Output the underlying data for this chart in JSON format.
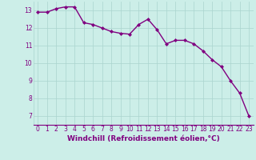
{
  "x": [
    0,
    1,
    2,
    3,
    4,
    5,
    6,
    7,
    8,
    9,
    10,
    11,
    12,
    13,
    14,
    15,
    16,
    17,
    18,
    19,
    20,
    21,
    22,
    23
  ],
  "y": [
    12.9,
    12.9,
    13.1,
    13.2,
    13.2,
    12.3,
    12.2,
    12.0,
    11.8,
    11.7,
    11.65,
    12.2,
    12.5,
    11.9,
    11.1,
    11.3,
    11.3,
    11.1,
    10.7,
    10.2,
    9.8,
    9.0,
    8.3,
    7.0
  ],
  "line_color": "#800080",
  "marker": "D",
  "marker_size": 2.0,
  "bg_color": "#cceee8",
  "grid_color": "#aad4ce",
  "xlabel": "Windchill (Refroidissement éolien,°C)",
  "xlabel_color": "#800080",
  "tick_color": "#800080",
  "xlim": [
    -0.5,
    23.5
  ],
  "ylim": [
    6.5,
    13.5
  ],
  "yticks": [
    7,
    8,
    9,
    10,
    11,
    12,
    13
  ],
  "xticks": [
    0,
    1,
    2,
    3,
    4,
    5,
    6,
    7,
    8,
    9,
    10,
    11,
    12,
    13,
    14,
    15,
    16,
    17,
    18,
    19,
    20,
    21,
    22,
    23
  ],
  "tick_fontsize": 5.5,
  "xlabel_fontsize": 6.5,
  "linewidth": 1.0
}
